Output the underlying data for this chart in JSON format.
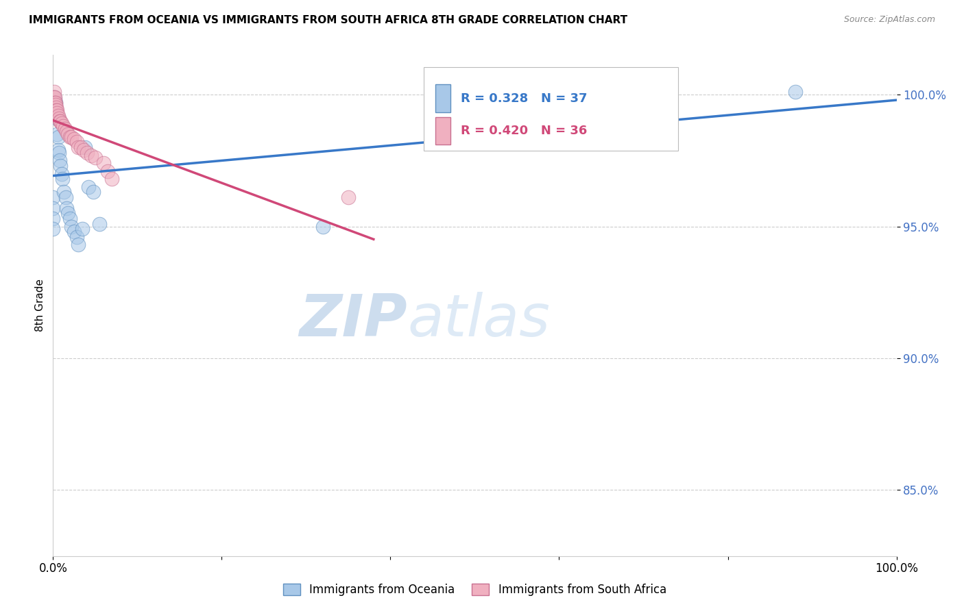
{
  "title": "IMMIGRANTS FROM OCEANIA VS IMMIGRANTS FROM SOUTH AFRICA 8TH GRADE CORRELATION CHART",
  "source": "Source: ZipAtlas.com",
  "ylabel": "8th Grade",
  "R_blue": "R = 0.328",
  "N_blue": "N = 37",
  "R_pink": "R = 0.420",
  "N_pink": "N = 36",
  "blue_fill": "#a8c8e8",
  "blue_edge": "#6090c0",
  "blue_line": "#3878c8",
  "pink_fill": "#f0b0c0",
  "pink_edge": "#c87090",
  "pink_line": "#d04878",
  "legend_blue_label": "Immigrants from Oceania",
  "legend_pink_label": "Immigrants from South Africa",
  "watermark_zip": "ZIP",
  "watermark_atlas": "atlas",
  "xlim": [
    0.0,
    1.0
  ],
  "ylim": [
    0.825,
    1.015
  ],
  "y_ticks": [
    0.85,
    0.9,
    0.95,
    1.0
  ],
  "y_tick_labels": [
    "85.0%",
    "90.0%",
    "95.0%",
    "100.0%"
  ],
  "blue_x": [
    0.0,
    0.0,
    0.0,
    0.0,
    0.001,
    0.001,
    0.002,
    0.002,
    0.003,
    0.003,
    0.004,
    0.005,
    0.005,
    0.006,
    0.006,
    0.007,
    0.008,
    0.009,
    0.01,
    0.011,
    0.013,
    0.015,
    0.016,
    0.018,
    0.02,
    0.022,
    0.025,
    0.028,
    0.03,
    0.035,
    0.038,
    0.042,
    0.048,
    0.055,
    0.32,
    0.72,
    0.88
  ],
  "blue_y": [
    0.961,
    0.957,
    0.953,
    0.949,
    0.999,
    0.997,
    0.998,
    0.995,
    0.997,
    0.993,
    0.992,
    0.991,
    0.985,
    0.984,
    0.979,
    0.978,
    0.975,
    0.973,
    0.97,
    0.968,
    0.963,
    0.961,
    0.957,
    0.955,
    0.953,
    0.95,
    0.948,
    0.946,
    0.943,
    0.949,
    0.98,
    0.965,
    0.963,
    0.951,
    0.95,
    1.001,
    1.001
  ],
  "pink_x": [
    0.0,
    0.0,
    0.0,
    0.001,
    0.001,
    0.002,
    0.002,
    0.003,
    0.003,
    0.004,
    0.004,
    0.005,
    0.005,
    0.006,
    0.007,
    0.008,
    0.009,
    0.01,
    0.012,
    0.014,
    0.016,
    0.018,
    0.02,
    0.022,
    0.025,
    0.028,
    0.03,
    0.033,
    0.036,
    0.04,
    0.045,
    0.05,
    0.06,
    0.065,
    0.07,
    0.35
  ],
  "pink_y": [
    0.999,
    0.997,
    0.993,
    1.001,
    0.999,
    0.999,
    0.997,
    0.997,
    0.996,
    0.995,
    0.994,
    0.994,
    0.993,
    0.992,
    0.991,
    0.99,
    0.99,
    0.989,
    0.988,
    0.987,
    0.986,
    0.985,
    0.984,
    0.984,
    0.983,
    0.982,
    0.98,
    0.98,
    0.979,
    0.978,
    0.977,
    0.976,
    0.974,
    0.971,
    0.968,
    0.961
  ],
  "background_color": "#ffffff",
  "grid_color": "#cccccc"
}
